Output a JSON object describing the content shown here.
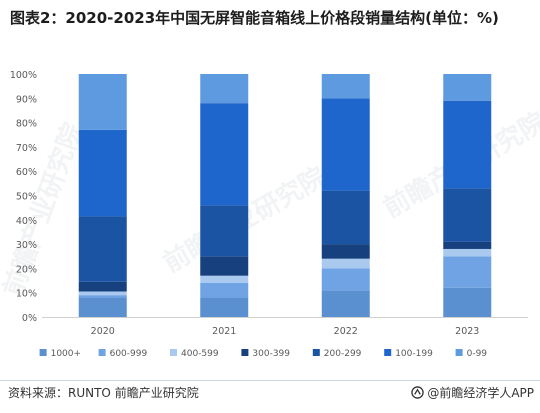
{
  "title": "图表2：2020-2023年中国无屏智能音箱线上价格段销量结构(单位：%)",
  "source": "资料来源：RUNTO 前瞻产业研究院",
  "brand": "@前瞻经济学人APP",
  "watermark": "前瞻产业研究院",
  "colors": {
    "1000+": "#5a8fd0",
    "600-999": "#6fa3e3",
    "400-599": "#a9c9ef",
    "300-399": "#16417e",
    "200-299": "#1a54a3",
    "100-199": "#1e66cc",
    "0-99": "#5d9ae0"
  },
  "chart_data": {
    "type": "bar",
    "stacked": true,
    "categories": [
      "2020",
      "2021",
      "2022",
      "2023"
    ],
    "ylim": [
      0,
      100
    ],
    "yticks": [
      "0%",
      "10%",
      "20%",
      "30%",
      "40%",
      "50%",
      "60%",
      "70%",
      "80%",
      "90%",
      "100%"
    ],
    "legend_position": "bottom",
    "grid": false,
    "series": [
      {
        "name": "1000+",
        "values": [
          8,
          8,
          11,
          12
        ]
      },
      {
        "name": "600-999",
        "values": [
          1,
          6,
          9,
          13
        ]
      },
      {
        "name": "400-599",
        "values": [
          1.5,
          3,
          4,
          3
        ]
      },
      {
        "name": "300-399",
        "values": [
          4,
          8,
          6,
          3
        ]
      },
      {
        "name": "200-299",
        "values": [
          27,
          21,
          22,
          22
        ]
      },
      {
        "name": "100-199",
        "values": [
          35.5,
          42,
          38,
          36
        ]
      },
      {
        "name": "0-99",
        "values": [
          23,
          12,
          10,
          11
        ]
      }
    ]
  }
}
